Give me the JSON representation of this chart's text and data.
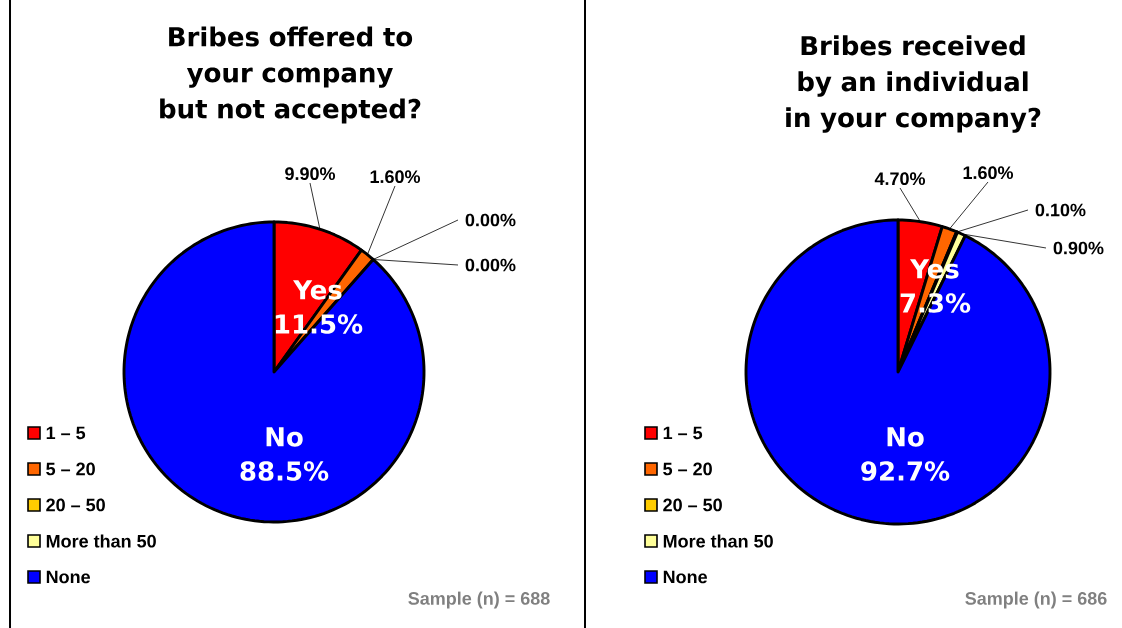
{
  "chart_data": [
    {
      "type": "pie",
      "title": "Bribes offered to your company but not accepted?",
      "categories": [
        "1 – 5",
        "5 – 20",
        "20 – 50",
        "More than 50",
        "None"
      ],
      "values": [
        9.9,
        1.6,
        0,
        0,
        88.5
      ],
      "colors": [
        "#ff0000",
        "#ff6600",
        "#ffcc00",
        "#ffff99",
        "#0000ff"
      ],
      "value_labels": [
        "9.90%",
        "1.60%",
        "0.00%",
        "0.00%",
        null
      ],
      "annotations": [
        "Yes",
        "11.5%",
        "No",
        "88.5%",
        "Sample (n) = 688"
      ],
      "legend": "bottom left"
    },
    {
      "type": "pie",
      "title": "Bribes received by an individual in your company?",
      "categories": [
        "1 – 5",
        "5 – 20",
        "20 – 50",
        "More than 50",
        "None"
      ],
      "values": [
        4.7,
        1.6,
        0.1,
        0.9,
        92.7
      ],
      "colors": [
        "#ff0000",
        "#ff6600",
        "#ffcc00",
        "#ffff99",
        "#0000ff"
      ],
      "value_labels": [
        "4.70%",
        "1.60%",
        "0.10%",
        "0.90%",
        null
      ],
      "annotations": [
        "Yes",
        "7.3%",
        "No",
        "92.7%",
        "Sample (n) = 686"
      ],
      "legend": "bottom left"
    }
  ]
}
